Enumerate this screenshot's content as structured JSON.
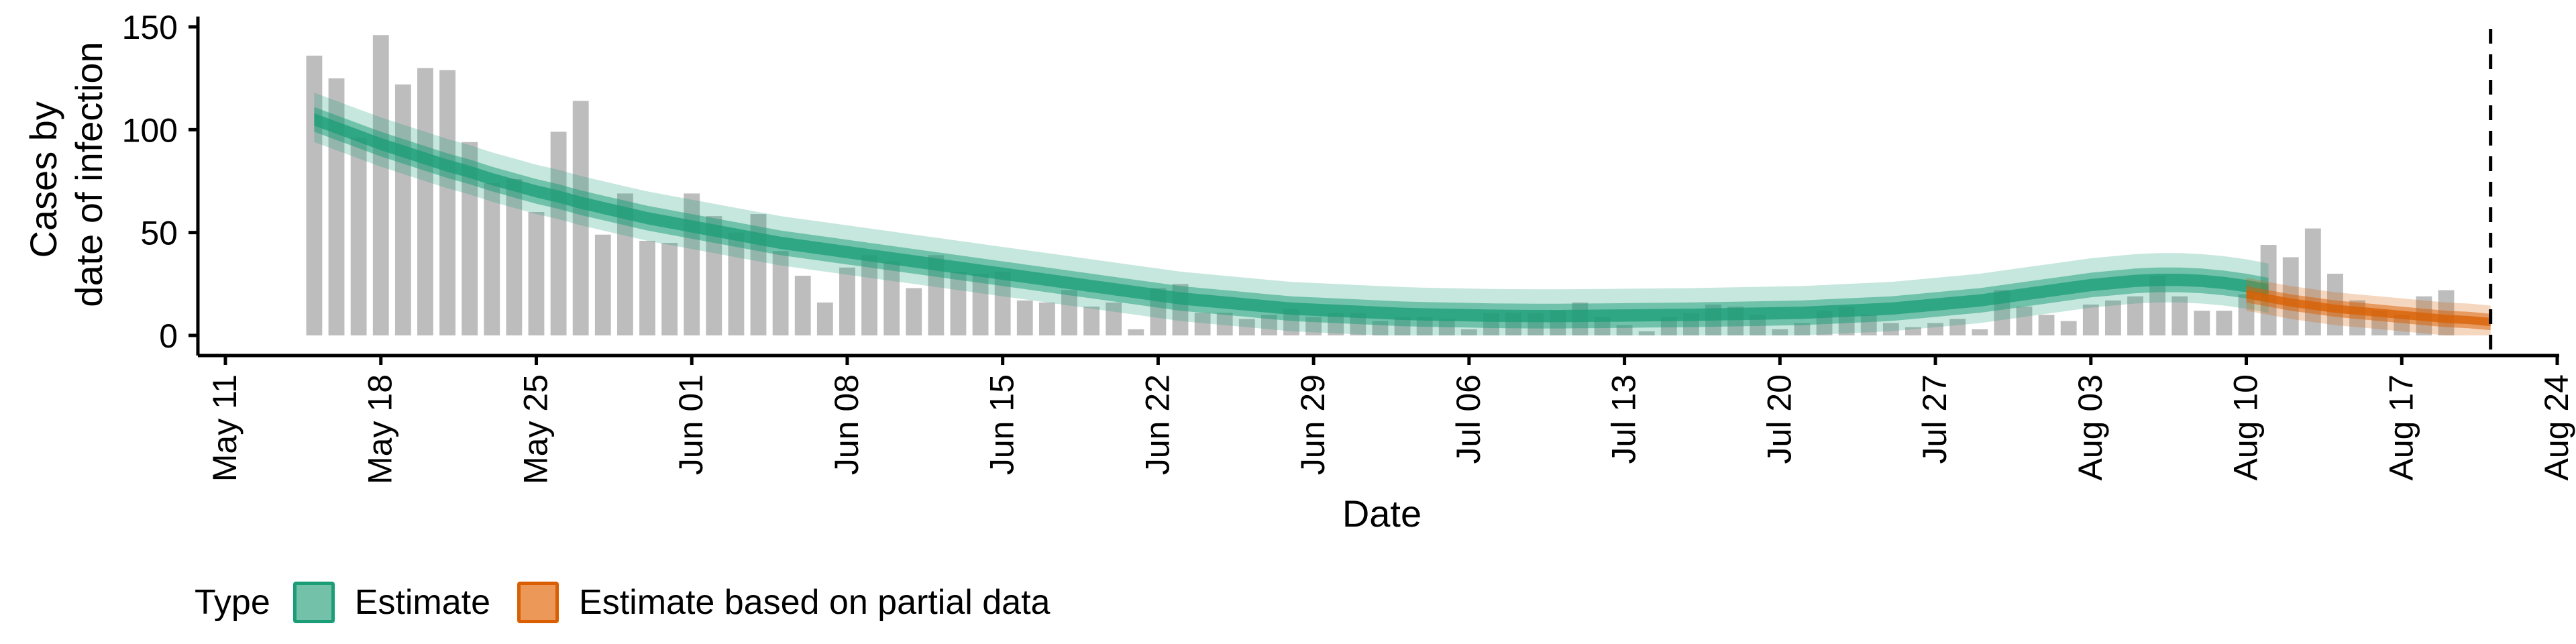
{
  "legend": {
    "title": "Type",
    "items": [
      {
        "label": "Estimate",
        "fill": "#72c1a8",
        "border": "#1b9e77"
      },
      {
        "label": "Estimate based on partial data",
        "fill": "#eb9858",
        "border": "#d95f02"
      }
    ]
  },
  "chart_data": {
    "type": "bar",
    "xlabel": "Date",
    "ylabel_lines": [
      "Cases by",
      "date of infection"
    ],
    "ylim": [
      0,
      155
    ],
    "yticks": [
      0,
      50,
      100,
      150
    ],
    "xlim": [
      "2020-05-11",
      "2020-08-24"
    ],
    "xticks": [
      {
        "date": "2020-05-11",
        "label": "May 11"
      },
      {
        "date": "2020-05-18",
        "label": "May 18"
      },
      {
        "date": "2020-05-25",
        "label": "May 25"
      },
      {
        "date": "2020-06-01",
        "label": "Jun 01"
      },
      {
        "date": "2020-06-08",
        "label": "Jun 08"
      },
      {
        "date": "2020-06-15",
        "label": "Jun 15"
      },
      {
        "date": "2020-06-22",
        "label": "Jun 22"
      },
      {
        "date": "2020-06-29",
        "label": "Jun 29"
      },
      {
        "date": "2020-07-06",
        "label": "Jul 06"
      },
      {
        "date": "2020-07-13",
        "label": "Jul 13"
      },
      {
        "date": "2020-07-20",
        "label": "Jul 20"
      },
      {
        "date": "2020-07-27",
        "label": "Jul 27"
      },
      {
        "date": "2020-08-03",
        "label": "Aug 03"
      },
      {
        "date": "2020-08-10",
        "label": "Aug 10"
      },
      {
        "date": "2020-08-17",
        "label": "Aug 17"
      },
      {
        "date": "2020-08-24",
        "label": "Aug 24"
      }
    ],
    "reference_line_date": "2020-08-21",
    "bar_color": "#bdbdbd",
    "bars": {
      "start_date": "2020-05-15",
      "values": [
        136,
        125,
        96,
        146,
        122,
        130,
        129,
        94,
        74,
        76,
        60,
        99,
        114,
        49,
        69,
        46,
        45,
        69,
        58,
        50,
        59,
        41,
        29,
        16,
        33,
        39,
        36,
        23,
        39,
        31,
        30,
        31,
        17,
        16,
        22,
        14,
        16,
        3,
        23,
        25,
        11,
        11,
        8,
        10,
        13,
        9,
        11,
        11,
        7,
        9,
        9,
        8,
        3,
        11,
        11,
        11,
        12,
        16,
        9,
        5,
        2,
        9,
        11,
        15,
        14,
        10,
        3,
        6,
        12,
        14,
        10,
        6,
        4,
        6,
        8,
        3,
        22,
        14,
        10,
        7,
        15,
        17,
        19,
        29,
        19,
        12,
        12,
        20,
        44,
        38,
        52,
        30,
        17,
        12,
        10,
        19,
        22
      ]
    },
    "series": [
      {
        "name": "Estimate",
        "start_date": "2020-05-15",
        "color": "#1b9e77",
        "outer_alpha": 0.25,
        "inner_alpha": 0.5,
        "core_alpha": 0.75,
        "median": [
          105,
          101,
          97,
          93,
          89.5,
          86,
          82.5,
          79.5,
          76,
          73,
          70,
          67.5,
          64.5,
          62,
          59.5,
          57,
          55,
          53,
          51,
          49,
          47,
          45,
          43.5,
          42,
          40.5,
          39,
          37.5,
          36,
          34.5,
          33,
          31.5,
          30,
          28.5,
          27,
          25.5,
          24,
          22.5,
          21,
          19.5,
          18,
          17,
          16,
          15,
          14,
          13,
          12.5,
          12,
          11.5,
          11,
          10.5,
          10.2,
          10,
          9.8,
          9.6,
          9.5,
          9.4,
          9.4,
          9.5,
          9.6,
          9.7,
          9.8,
          9.9,
          10,
          10.2,
          10.4,
          10.6,
          10.8,
          11,
          11.5,
          12,
          12.5,
          13,
          14,
          15,
          16,
          17,
          18.5,
          20,
          21.5,
          23,
          24.5,
          25.5,
          26.5,
          27,
          27,
          26.5,
          25.5,
          24,
          22
        ],
        "band90": [
          [
            94,
            90,
            86,
            82,
            78.5,
            75,
            71.5,
            68.5,
            65,
            62,
            59,
            56.5,
            53.5,
            51,
            48.5,
            46,
            44,
            42,
            40,
            38,
            36,
            34,
            32.5,
            31,
            29.5,
            28,
            26.5,
            25,
            23.5,
            22,
            20.5,
            19,
            17.5,
            16,
            14.5,
            13,
            11.5,
            10,
            8.5,
            7,
            6,
            5,
            4,
            3,
            2,
            1.5,
            1,
            0.5,
            0,
            0,
            0,
            0,
            0,
            0,
            0,
            0,
            0,
            0,
            0,
            0,
            0,
            0,
            0,
            0,
            0,
            0,
            0,
            0,
            0.5,
            1,
            1.5,
            2,
            3,
            4,
            5,
            6,
            7.5,
            9,
            10.5,
            12,
            13.5,
            14.5,
            15.5,
            16,
            16,
            15.5,
            14.5,
            13,
            11
          ],
          [
            118,
            114,
            110,
            106,
            102.5,
            99,
            95.5,
            92.5,
            89,
            86,
            83,
            80.5,
            77.5,
            75,
            72.5,
            70,
            68,
            66,
            64,
            62,
            60,
            58,
            56.5,
            55,
            53.5,
            52,
            50.5,
            49,
            47.5,
            46,
            44.5,
            43,
            41.5,
            40,
            38.5,
            37,
            35.5,
            34,
            32.5,
            31,
            30,
            29,
            28,
            27,
            26,
            25.5,
            25,
            24.5,
            24,
            23.5,
            23.2,
            23,
            22.8,
            22.6,
            22.5,
            22.4,
            22.4,
            22.5,
            22.6,
            22.7,
            22.8,
            22.9,
            23,
            23.2,
            23.4,
            23.6,
            23.8,
            24,
            24.5,
            25,
            25.5,
            26,
            27,
            28,
            29,
            30,
            31.5,
            33,
            34.5,
            36,
            37.5,
            38.5,
            39.5,
            40,
            40,
            39.5,
            38.5,
            37,
            35
          ]
        ],
        "band50": [
          [
            99,
            95,
            91,
            87,
            83.5,
            80,
            76.5,
            73.5,
            70,
            67,
            64,
            61.5,
            58.5,
            56,
            53.5,
            51,
            49,
            47,
            45,
            43,
            41,
            39,
            37.5,
            36,
            34.5,
            33,
            31.5,
            30,
            28.5,
            27,
            25.5,
            24,
            22.5,
            21,
            19.5,
            18,
            16.5,
            15,
            13.5,
            12,
            11,
            10,
            9,
            8,
            7,
            6.5,
            6,
            5.5,
            5,
            4.5,
            4.2,
            4,
            3.8,
            3.6,
            3.5,
            3.4,
            3.4,
            3.5,
            3.6,
            3.7,
            3.8,
            3.9,
            4,
            4.2,
            4.4,
            4.6,
            4.8,
            5,
            5.5,
            6,
            6.5,
            7,
            8,
            9,
            10,
            11,
            12.5,
            14,
            15.5,
            17,
            18.5,
            19.5,
            20.5,
            21,
            21,
            20.5,
            19.5,
            18,
            16
          ],
          [
            111,
            107,
            103,
            99,
            95.5,
            92,
            88.5,
            85.5,
            82,
            79,
            76,
            73.5,
            70.5,
            68,
            65.5,
            63,
            61,
            59,
            57,
            55,
            53,
            51,
            49.5,
            48,
            46.5,
            45,
            43.5,
            42,
            40.5,
            39,
            37.5,
            36,
            34.5,
            33,
            31.5,
            30,
            28.5,
            27,
            25.5,
            24,
            23,
            22,
            21,
            20,
            19,
            18.5,
            18,
            17.5,
            17,
            16.5,
            16.2,
            16,
            15.8,
            15.6,
            15.5,
            15.4,
            15.4,
            15.5,
            15.6,
            15.7,
            15.8,
            15.9,
            16,
            16.2,
            16.4,
            16.6,
            16.8,
            17,
            17.5,
            18,
            18.5,
            19,
            20,
            21,
            22,
            23,
            24.5,
            26,
            27.5,
            29,
            30.5,
            31.5,
            32.5,
            33,
            33,
            32.5,
            31.5,
            30,
            28
          ]
        ],
        "band20": [
          [
            102,
            98,
            94,
            90,
            86.5,
            83,
            79.5,
            76.5,
            73,
            70,
            67,
            64.5,
            61.5,
            59,
            56.5,
            54,
            52,
            50,
            48,
            46,
            44,
            42,
            40.5,
            39,
            37.5,
            36,
            34.5,
            33,
            31.5,
            30,
            28.5,
            27,
            25.5,
            24,
            22.5,
            21,
            19.5,
            18,
            16.5,
            15,
            14,
            13,
            12,
            11,
            10,
            9.5,
            9,
            8.5,
            8,
            7.5,
            7.2,
            7,
            6.8,
            6.6,
            6.5,
            6.4,
            6.4,
            6.5,
            6.6,
            6.7,
            6.8,
            6.9,
            7,
            7.2,
            7.4,
            7.6,
            7.8,
            8,
            8.5,
            9,
            9.5,
            10,
            11,
            12,
            13,
            14,
            15.5,
            17,
            18.5,
            20,
            21.5,
            22.5,
            23.5,
            24,
            24,
            23.5,
            22.5,
            21,
            19
          ],
          [
            108,
            104,
            100,
            96,
            92.5,
            89,
            85.5,
            82.5,
            79,
            76,
            73,
            70.5,
            67.5,
            65,
            62.5,
            60,
            58,
            56,
            54,
            52,
            50,
            48,
            46.5,
            45,
            43.5,
            42,
            40.5,
            39,
            37.5,
            36,
            34.5,
            33,
            31.5,
            30,
            28.5,
            27,
            25.5,
            24,
            22.5,
            21,
            20,
            19,
            18,
            17,
            16,
            15.5,
            15,
            14.5,
            14,
            13.5,
            13.2,
            13,
            12.8,
            12.6,
            12.5,
            12.4,
            12.4,
            12.5,
            12.6,
            12.7,
            12.8,
            12.9,
            13,
            13.2,
            13.4,
            13.6,
            13.8,
            14,
            14.5,
            15,
            15.5,
            16,
            17,
            18,
            19,
            20,
            21.5,
            23,
            24.5,
            26,
            27.5,
            28.5,
            29.5,
            30,
            30,
            29.5,
            28.5,
            27,
            25
          ]
        ]
      },
      {
        "name": "Estimate based on partial data",
        "start_date": "2020-08-10",
        "color": "#d95f02",
        "outer_alpha": 0.25,
        "inner_alpha": 0.5,
        "core_alpha": 0.75,
        "median": [
          20,
          18,
          16,
          14.5,
          13,
          12,
          11,
          10,
          9,
          8,
          7.5,
          6.5
        ],
        "band90": [
          [
            12,
            10,
            8,
            6.5,
            5,
            4,
            3,
            2,
            1,
            0,
            0,
            0
          ],
          [
            28,
            26,
            24,
            22.5,
            21,
            20,
            19,
            18,
            17,
            16,
            15.5,
            14.5
          ]
        ],
        "band50": [
          [
            16,
            14,
            12,
            10.5,
            9,
            8,
            7,
            6,
            5,
            4,
            3.5,
            2.5
          ],
          [
            24,
            22,
            20,
            18.5,
            17,
            16,
            15,
            14,
            13,
            12,
            11.5,
            10.5
          ]
        ],
        "band20": [
          [
            18,
            16,
            14,
            12.5,
            11,
            10,
            9,
            8,
            7,
            6,
            5.5,
            4.5
          ],
          [
            22,
            20,
            18,
            16.5,
            15,
            14,
            13,
            12,
            11,
            10,
            9.5,
            8.5
          ]
        ]
      }
    ]
  }
}
